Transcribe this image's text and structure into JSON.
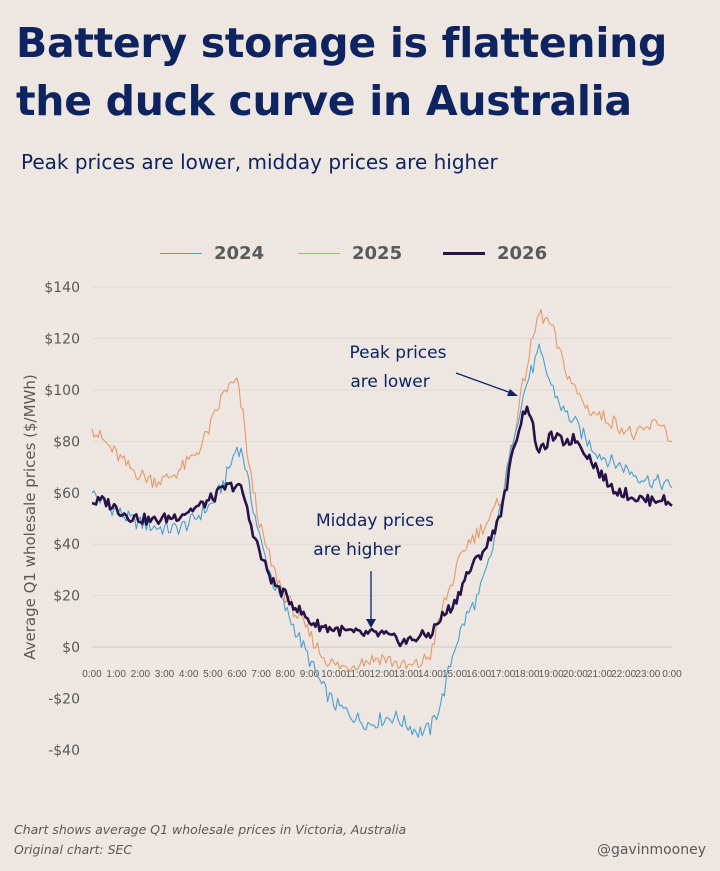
{
  "header": {
    "title": "Battery storage is flattening the duck curve in Australia",
    "subtitle": "Peak prices are lower, midday prices are higher"
  },
  "footer": {
    "note_line1": "Chart shows average Q1 wholesale prices in Victoria, Australia",
    "note_line2": "Original chart: SEC",
    "handle": "@gavinmooney"
  },
  "chart_data": {
    "type": "line",
    "ylabel": "Average Q1 wholesale prices ($/MWh)",
    "xlabel": "",
    "ylim": [
      -40,
      140
    ],
    "yticks": [
      -40,
      -20,
      0,
      20,
      40,
      60,
      80,
      100,
      120,
      140
    ],
    "ytick_labels": [
      "-$40",
      "-$20",
      "$0",
      "$20",
      "$40",
      "$60",
      "$80",
      "$100",
      "$120",
      "$140"
    ],
    "xticks": [
      "0:00",
      "1:00",
      "2:00",
      "3:00",
      "4:00",
      "5:00",
      "6:00",
      "7:00",
      "8:00",
      "9:00",
      "10:00",
      "11:00",
      "12:00",
      "13:00",
      "14:00",
      "15:00",
      "16:00",
      "17:00",
      "18:00",
      "19:00",
      "20:00",
      "21:00",
      "22:00",
      "23:00",
      "0:00"
    ],
    "grid": "horizontal",
    "legend_position": "top",
    "x": [
      0,
      0.5,
      1,
      1.5,
      2,
      2.5,
      3,
      3.5,
      4,
      4.5,
      5,
      5.5,
      6,
      6.25,
      6.5,
      7,
      7.5,
      8,
      8.5,
      9,
      9.5,
      10,
      10.5,
      11,
      11.5,
      12,
      12.5,
      13,
      13.5,
      14,
      14.5,
      15,
      15.5,
      16,
      16.5,
      17,
      17.5,
      18,
      18.5,
      19,
      19.5,
      20,
      20.5,
      21,
      21.5,
      22,
      22.5,
      23,
      23.5,
      24
    ],
    "series": [
      {
        "name": "2024",
        "color": "#4a9fd0",
        "values": [
          60,
          56,
          53,
          50,
          48,
          47,
          46,
          46,
          48,
          52,
          56,
          65,
          78,
          75,
          62,
          40,
          25,
          15,
          5,
          -5,
          -15,
          -22,
          -25,
          -28,
          -30,
          -28,
          -27,
          -30,
          -33,
          -32,
          -20,
          0,
          12,
          20,
          35,
          58,
          85,
          103,
          115,
          102,
          92,
          87,
          80,
          75,
          72,
          70,
          67,
          65,
          64,
          62
        ]
      },
      {
        "name": "2025",
        "color": "#e6996a",
        "values": [
          85,
          80,
          75,
          70,
          67,
          65,
          65,
          68,
          72,
          78,
          88,
          100,
          103,
          90,
          70,
          45,
          30,
          20,
          12,
          5,
          -3,
          -7,
          -8,
          -6,
          -5,
          -4,
          -6,
          -8,
          -7,
          -3,
          15,
          28,
          40,
          45,
          50,
          60,
          85,
          110,
          130,
          125,
          110,
          100,
          93,
          90,
          88,
          85,
          82,
          85,
          88,
          80
        ]
      },
      {
        "name": "2026",
        "color": "#271347",
        "values": [
          56,
          57,
          54,
          51,
          50,
          49,
          50,
          51,
          53,
          55,
          58,
          62,
          63,
          60,
          50,
          35,
          25,
          20,
          15,
          10,
          8,
          7,
          6,
          5,
          5,
          5,
          3,
          2,
          4,
          5,
          12,
          17,
          28,
          35,
          42,
          55,
          80,
          95,
          75,
          82,
          80,
          81,
          75,
          68,
          62,
          60,
          58,
          57,
          58,
          55
        ]
      }
    ],
    "annotations": [
      {
        "text_line1": "Peak prices",
        "text_line2": "are lower"
      },
      {
        "text_line1": "Midday prices",
        "text_line2": "are higher"
      }
    ]
  }
}
